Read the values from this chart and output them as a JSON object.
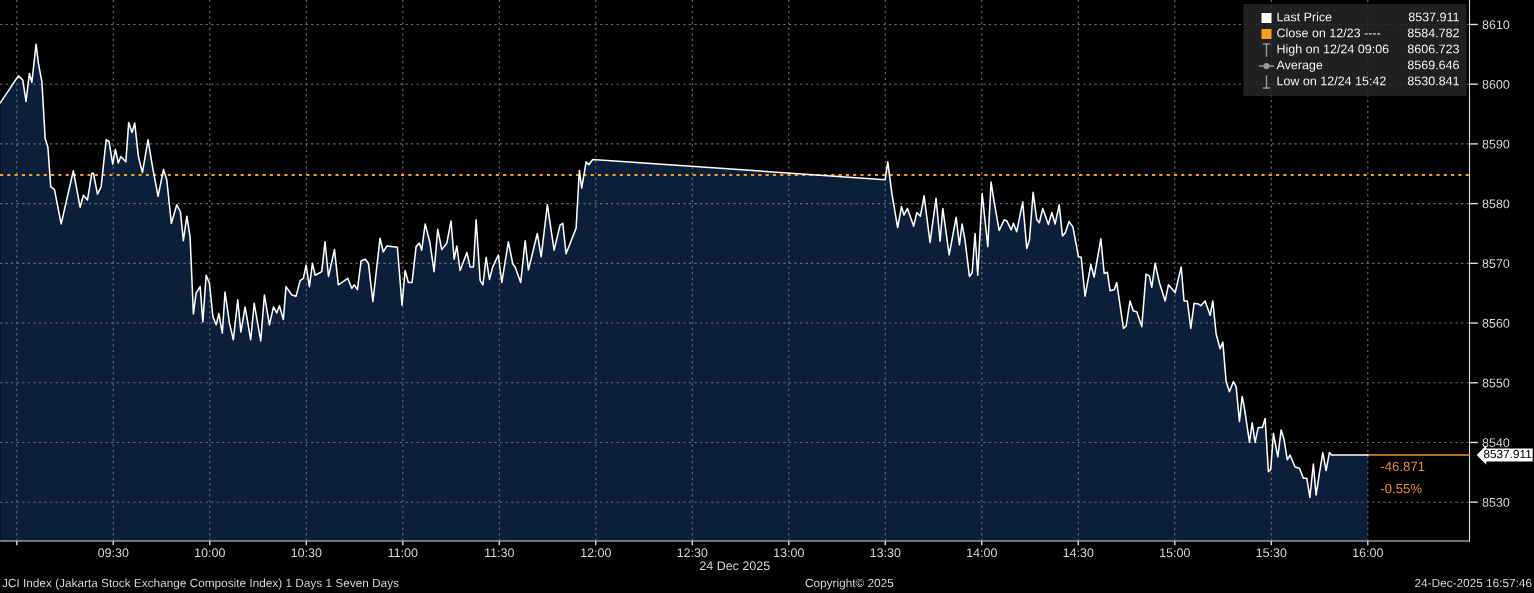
{
  "chart_data": {
    "type": "area",
    "xlabel": "24 Dec 2025",
    "x": [
      8.915,
      9.008,
      9.031,
      9.048,
      9.065,
      9.078,
      9.1,
      9.112,
      9.13,
      9.147,
      9.161,
      9.176,
      9.195,
      9.23,
      9.293,
      9.328,
      9.345,
      9.366,
      9.389,
      9.397,
      9.418,
      9.437,
      9.463,
      9.478,
      9.497,
      9.511,
      9.526,
      9.539,
      9.565,
      9.58,
      9.597,
      9.611,
      9.63,
      9.651,
      9.68,
      9.703,
      9.732,
      9.76,
      9.777,
      9.801,
      9.829,
      9.848,
      9.863,
      9.881,
      9.898,
      9.915,
      9.929,
      9.95,
      9.964,
      9.981,
      9.998,
      10.016,
      10.033,
      10.047,
      10.065,
      10.079,
      10.102,
      10.122,
      10.145,
      10.161,
      10.183,
      10.212,
      10.23,
      10.264,
      10.283,
      10.309,
      10.33,
      10.347,
      10.361,
      10.381,
      10.395,
      10.425,
      10.447,
      10.468,
      10.485,
      10.499,
      10.516,
      10.532,
      10.546,
      10.58,
      10.597,
      10.615,
      10.646,
      10.666,
      10.715,
      10.736,
      10.748,
      10.765,
      10.784,
      10.805,
      10.822,
      10.845,
      10.882,
      10.899,
      10.917,
      10.972,
      10.996,
      11.012,
      11.029,
      11.048,
      11.069,
      11.086,
      11.098,
      11.116,
      11.141,
      11.162,
      11.181,
      11.202,
      11.228,
      11.25,
      11.266,
      11.28,
      11.297,
      11.332,
      11.349,
      11.366,
      11.38,
      11.401,
      11.415,
      11.432,
      11.449,
      11.466,
      11.495,
      11.513,
      11.547,
      11.57,
      11.582,
      11.611,
      11.634,
      11.651,
      11.697,
      11.717,
      11.749,
      11.784,
      11.815,
      11.829,
      11.846,
      11.898,
      11.915,
      11.927,
      11.95,
      11.964,
      11.984,
      13.499,
      13.513,
      13.534,
      13.564,
      13.584,
      13.597,
      13.615,
      13.647,
      13.663,
      13.682,
      13.701,
      13.732,
      13.763,
      13.784,
      13.798,
      13.831,
      13.867,
      13.884,
      13.898,
      13.913,
      13.936,
      13.95,
      13.965,
      13.979,
      14.002,
      14.031,
      14.048,
      14.065,
      14.09,
      14.116,
      14.13,
      14.152,
      14.164,
      14.181,
      14.212,
      14.233,
      14.247,
      14.266,
      14.285,
      14.298,
      14.316,
      14.345,
      14.363,
      14.38,
      14.401,
      14.418,
      14.432,
      14.452,
      14.472,
      14.501,
      14.515,
      14.535,
      14.565,
      14.582,
      14.617,
      14.634,
      14.651,
      14.665,
      14.687,
      14.699,
      14.734,
      14.748,
      14.768,
      14.785,
      14.803,
      14.829,
      14.851,
      14.868,
      14.881,
      14.898,
      14.92,
      14.95,
      14.967,
      15.002,
      15.033,
      15.048,
      15.065,
      15.083,
      15.1,
      15.122,
      15.135,
      15.157,
      15.183,
      15.197,
      15.214,
      15.235,
      15.249,
      15.266,
      15.283,
      15.304,
      15.318,
      15.335,
      15.349,
      15.361,
      15.387,
      15.401,
      15.416,
      15.432,
      15.454,
      15.468,
      15.485,
      15.497,
      15.511,
      15.534,
      15.551,
      15.566,
      15.583,
      15.597,
      15.623,
      15.646,
      15.666,
      15.684,
      15.7,
      15.718,
      15.732,
      15.749,
      15.767,
      15.784,
      15.801,
      15.812,
      16.0
    ],
    "series": [
      {
        "name": "Last Price",
        "color": "#ffffff",
        "values": [
          8596.9,
          8601.4,
          8600.7,
          8597.1,
          8601.8,
          8600.3,
          8606.7,
          8603.5,
          8600.4,
          8590.9,
          8589.5,
          8582.8,
          8582.4,
          8576.6,
          8585.5,
          8579.4,
          8581.4,
          8580.6,
          8585.1,
          8585.1,
          8581.6,
          8582.8,
          8590.7,
          8590.4,
          8586.6,
          8589.1,
          8586.8,
          8587.9,
          8587.0,
          8593.6,
          8591.9,
          8593.5,
          8587.9,
          8585.2,
          8590.7,
          8586.2,
          8581.2,
          8585.7,
          8584.0,
          8576.7,
          8579.8,
          8578.6,
          8573.8,
          8577.9,
          8574.4,
          8561.5,
          8565.0,
          8566.1,
          8560.2,
          8568.0,
          8566.7,
          8561.1,
          8559.7,
          8561.6,
          8558.3,
          8565.2,
          8560.0,
          8557.2,
          8563.9,
          8558.5,
          8562.7,
          8557.2,
          8563.3,
          8557.0,
          8564.7,
          8559.7,
          8562.7,
          8561.7,
          8562.9,
          8560.6,
          8566.1,
          8564.7,
          8564.5,
          8567.1,
          8567.5,
          8569.7,
          8566.1,
          8570.0,
          8568.0,
          8568.6,
          8573.6,
          8567.8,
          8572.3,
          8566.4,
          8567.5,
          8565.8,
          8566.4,
          8565.6,
          8570.4,
          8570.7,
          8570.0,
          8563.6,
          8574.2,
          8571.9,
          8572.9,
          8572.7,
          8563.0,
          8568.8,
          8566.8,
          8566.8,
          8572.8,
          8573.4,
          8572.2,
          8576.6,
          8573.4,
          8568.6,
          8575.7,
          8572.3,
          8573.4,
          8577.1,
          8570.7,
          8572.9,
          8568.8,
          8571.8,
          8569.4,
          8569.4,
          8577.3,
          8567.1,
          8566.4,
          8571.0,
          8567.3,
          8569.4,
          8571.4,
          8566.8,
          8573.6,
          8569.9,
          8569.4,
          8566.8,
          8573.8,
          8568.9,
          8575.0,
          8571.1,
          8579.8,
          8572.2,
          8576.4,
          8576.7,
          8571.6,
          8575.9,
          8585.6,
          8582.6,
          8587.0,
          8586.5,
          8587.4,
          8584.0,
          8587.0,
          8581.7,
          8576.0,
          8579.5,
          8578.1,
          8579.2,
          8576.2,
          8578.5,
          8577.9,
          8581.3,
          8573.5,
          8580.9,
          8573.7,
          8579.2,
          8571.4,
          8577.7,
          8573.1,
          8576.6,
          8573.9,
          8567.8,
          8568.4,
          8575.0,
          8568.0,
          8581.7,
          8572.8,
          8583.6,
          8580.1,
          8575.5,
          8577.3,
          8577.1,
          8575.6,
          8576.7,
          8575.3,
          8580.3,
          8572.5,
          8573.9,
          8581.9,
          8577.3,
          8576.8,
          8579.2,
          8576.5,
          8578.5,
          8576.6,
          8579.8,
          8574.6,
          8575.1,
          8577.0,
          8576.1,
          8571.1,
          8571.0,
          8564.5,
          8569.8,
          8567.7,
          8574.1,
          8568.3,
          8568.5,
          8565.4,
          8565.6,
          8566.8,
          8559.1,
          8559.5,
          8563.7,
          8562.0,
          8561.9,
          8559.4,
          8568.2,
          8567.9,
          8566.0,
          8570.0,
          8566.8,
          8563.7,
          8566.4,
          8565.1,
          8569.4,
          8563.7,
          8563.7,
          8559.1,
          8563.3,
          8563.2,
          8562.9,
          8563.7,
          8561.3,
          8563.7,
          8558.2,
          8555.7,
          8556.8,
          8550.2,
          8548.5,
          8550.2,
          8549.3,
          8543.5,
          8547.7,
          8545.7,
          8540.0,
          8543.3,
          8540.0,
          8542.5,
          8542.5,
          8544.0,
          8535.1,
          8535.5,
          8541.5,
          8537.6,
          8542.1,
          8540.5,
          8537.1,
          8537.9,
          8535.9,
          8535.7,
          8534.0,
          8534.0,
          8530.8,
          8536.4,
          8531.2,
          8534.8,
          8538.3,
          8535.3,
          8538.3,
          8537.9,
          8537.9
        ]
      }
    ],
    "xlim": [
      8.913,
      16.527
    ],
    "xticks": [
      {
        "value": 9,
        "label": null
      },
      {
        "value": 9.5,
        "label": "09:30"
      },
      {
        "value": 10,
        "label": "10:00"
      },
      {
        "value": 10.5,
        "label": "10:30"
      },
      {
        "value": 11,
        "label": "11:00"
      },
      {
        "value": 11.5,
        "label": "11:30"
      },
      {
        "value": 12,
        "label": "12:00"
      },
      {
        "value": 12.5,
        "label": "12:30"
      },
      {
        "value": 13,
        "label": "13:00"
      },
      {
        "value": 13.5,
        "label": "13:30"
      },
      {
        "value": 14,
        "label": "14:00"
      },
      {
        "value": 14.5,
        "label": "14:30"
      },
      {
        "value": 15,
        "label": "15:00"
      },
      {
        "value": 15.5,
        "label": "15:30"
      },
      {
        "value": 16,
        "label": "16:00"
      }
    ],
    "ylim": [
      8523.5,
      8614.1
    ],
    "yticks": [
      8530,
      8540,
      8550,
      8560,
      8570,
      8580,
      8590,
      8600,
      8610
    ],
    "grid": true,
    "legend": "top right",
    "ref_lines": [
      {
        "axis": "y",
        "value": 8584.782,
        "label": "Close on 12/23 ---- 8584.782",
        "color": "#f7a021",
        "line_style": "dotted"
      }
    ],
    "annotations": [
      "-46.871",
      "-0.55%",
      "8537.911",
      {
        "text": "8537.911",
        "x": 16.0,
        "y": 8537.9
      },
      "High on 12/24 09:06 8606.723",
      "Average 8569.646",
      "Low on 12/24 15:42 8530.841",
      "JCI Index (Jakarta Stock Exchange Composite Index) 1 Days 1 Seven Days",
      "Copyright© 2025",
      "24-Dec-2025 16:57:46"
    ]
  }
}
